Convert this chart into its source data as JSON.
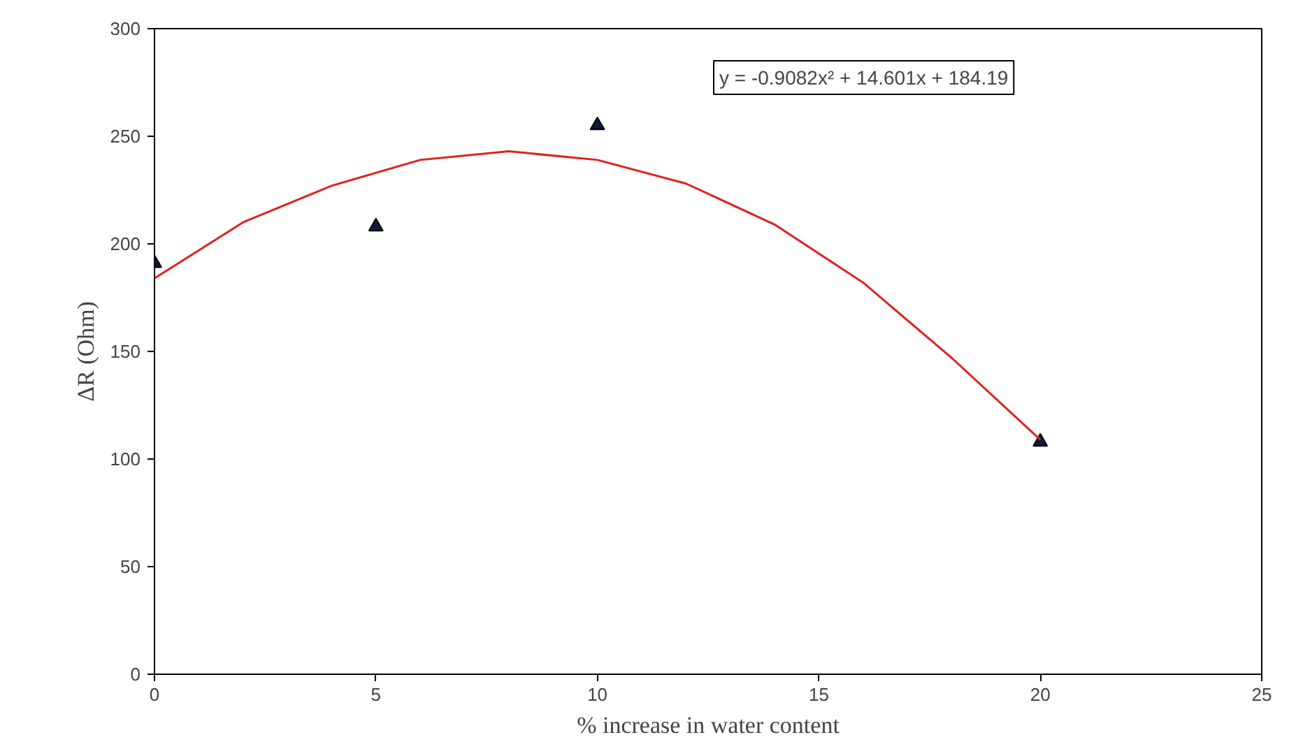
{
  "chart_data": {
    "type": "scatter",
    "xlabel": "% increase in water content",
    "ylabel": "ΔR (Ohm)",
    "xlim": [
      0,
      25
    ],
    "xticks": [
      0,
      5,
      10,
      15,
      20,
      25
    ],
    "ylim": [
      0,
      300
    ],
    "yticks": [
      0,
      50,
      100,
      150,
      200,
      250,
      300
    ],
    "grid": false,
    "marker": "triangle",
    "series": [
      {
        "color": "#0d1a3a",
        "x": [
          0,
          5,
          10,
          20
        ],
        "values": [
          191,
          208,
          255,
          108
        ]
      },
      {
        "type": "line",
        "color": "#e0201c",
        "marker": "none",
        "line_style": "solid",
        "x": [
          0,
          2,
          4,
          6,
          8,
          10,
          12,
          14,
          16,
          18,
          20
        ],
        "values": [
          184,
          210,
          227,
          239,
          243,
          239,
          228,
          209,
          182,
          147,
          109
        ]
      }
    ],
    "annotations": [
      "y = -0.9082x² + 14.601x + 184.19"
    ]
  }
}
